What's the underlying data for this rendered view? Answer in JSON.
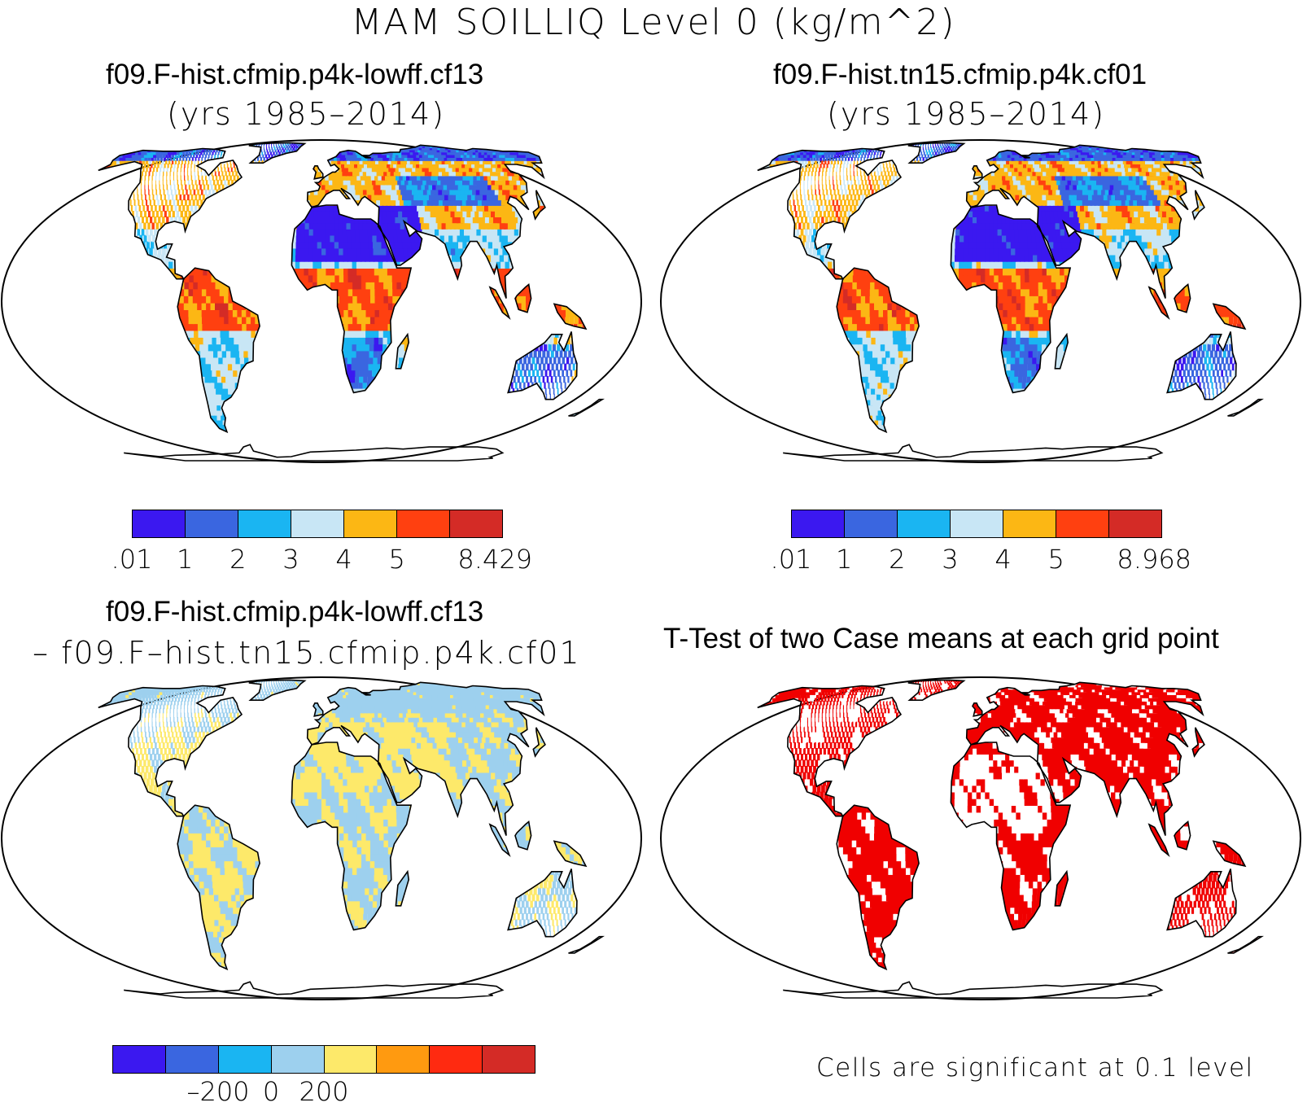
{
  "title": "MAM SOILLIQ Level 0 (kg/m^2)",
  "panels": {
    "top_left": {
      "title": "f09.F-hist.cfmip.p4k-lowff.cf13",
      "subtitle": "(yrs 1985–2014)",
      "colorbar": {
        "colors": [
          "#3b18f0",
          "#3a66e0",
          "#1ab5f2",
          "#c8e6f5",
          "#fcb714",
          "#ff4010",
          "#d42b26"
        ],
        "labels": [
          ".01",
          "1",
          "2",
          "3",
          "4",
          "5",
          "8.429"
        ]
      }
    },
    "top_right": {
      "title": "f09.F-hist.tn15.cfmip.p4k.cf01",
      "subtitle": "(yrs 1985–2014)",
      "colorbar": {
        "colors": [
          "#3b18f0",
          "#3a66e0",
          "#1ab5f2",
          "#c8e6f5",
          "#fcb714",
          "#ff4010",
          "#d42b26"
        ],
        "labels": [
          ".01",
          "1",
          "2",
          "3",
          "4",
          "5",
          "8.968"
        ]
      }
    },
    "bottom_left": {
      "title": "f09.F-hist.cfmip.p4k-lowff.cf13",
      "subtitle": "– f09.F–hist.tn15.cfmip.p4k.cf01",
      "colorbar": {
        "colors": [
          "#3b18f0",
          "#3a66e0",
          "#1ab5f2",
          "#9dd0ee",
          "#fde96a",
          "#ff9a10",
          "#ff2a10",
          "#d42b26"
        ],
        "labels": [
          "–200",
          "0",
          "200"
        ]
      }
    },
    "bottom_right": {
      "title": "T-Test of two Case means at each grid point",
      "note": "Cells are significant at 0.1 level",
      "significant_color": "#f00000"
    }
  }
}
